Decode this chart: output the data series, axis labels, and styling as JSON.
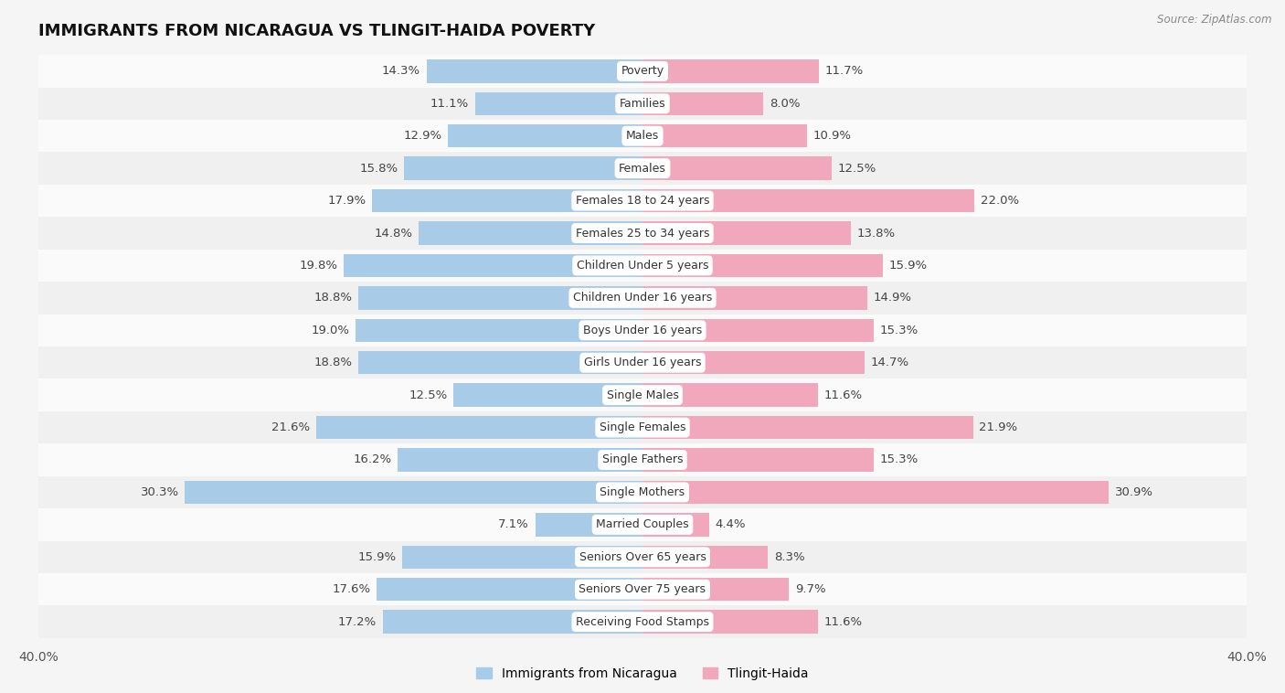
{
  "title": "IMMIGRANTS FROM NICARAGUA VS TLINGIT-HAIDA POVERTY",
  "source": "Source: ZipAtlas.com",
  "categories": [
    "Poverty",
    "Families",
    "Males",
    "Females",
    "Females 18 to 24 years",
    "Females 25 to 34 years",
    "Children Under 5 years",
    "Children Under 16 years",
    "Boys Under 16 years",
    "Girls Under 16 years",
    "Single Males",
    "Single Females",
    "Single Fathers",
    "Single Mothers",
    "Married Couples",
    "Seniors Over 65 years",
    "Seniors Over 75 years",
    "Receiving Food Stamps"
  ],
  "nicaragua_values": [
    14.3,
    11.1,
    12.9,
    15.8,
    17.9,
    14.8,
    19.8,
    18.8,
    19.0,
    18.8,
    12.5,
    21.6,
    16.2,
    30.3,
    7.1,
    15.9,
    17.6,
    17.2
  ],
  "tlingit_values": [
    11.7,
    8.0,
    10.9,
    12.5,
    22.0,
    13.8,
    15.9,
    14.9,
    15.3,
    14.7,
    11.6,
    21.9,
    15.3,
    30.9,
    4.4,
    8.3,
    9.7,
    11.6
  ],
  "nicaragua_color": "#A8CCE8",
  "tlingit_color": "#F2A8BC",
  "row_color_even": "#f0f0f0",
  "row_color_odd": "#fafafa",
  "background_color": "#f5f5f5",
  "xlim": 40.0,
  "bar_height": 0.72,
  "legend_nicaragua": "Immigrants from Nicaragua",
  "legend_tlingit": "Tlingit-Haida"
}
